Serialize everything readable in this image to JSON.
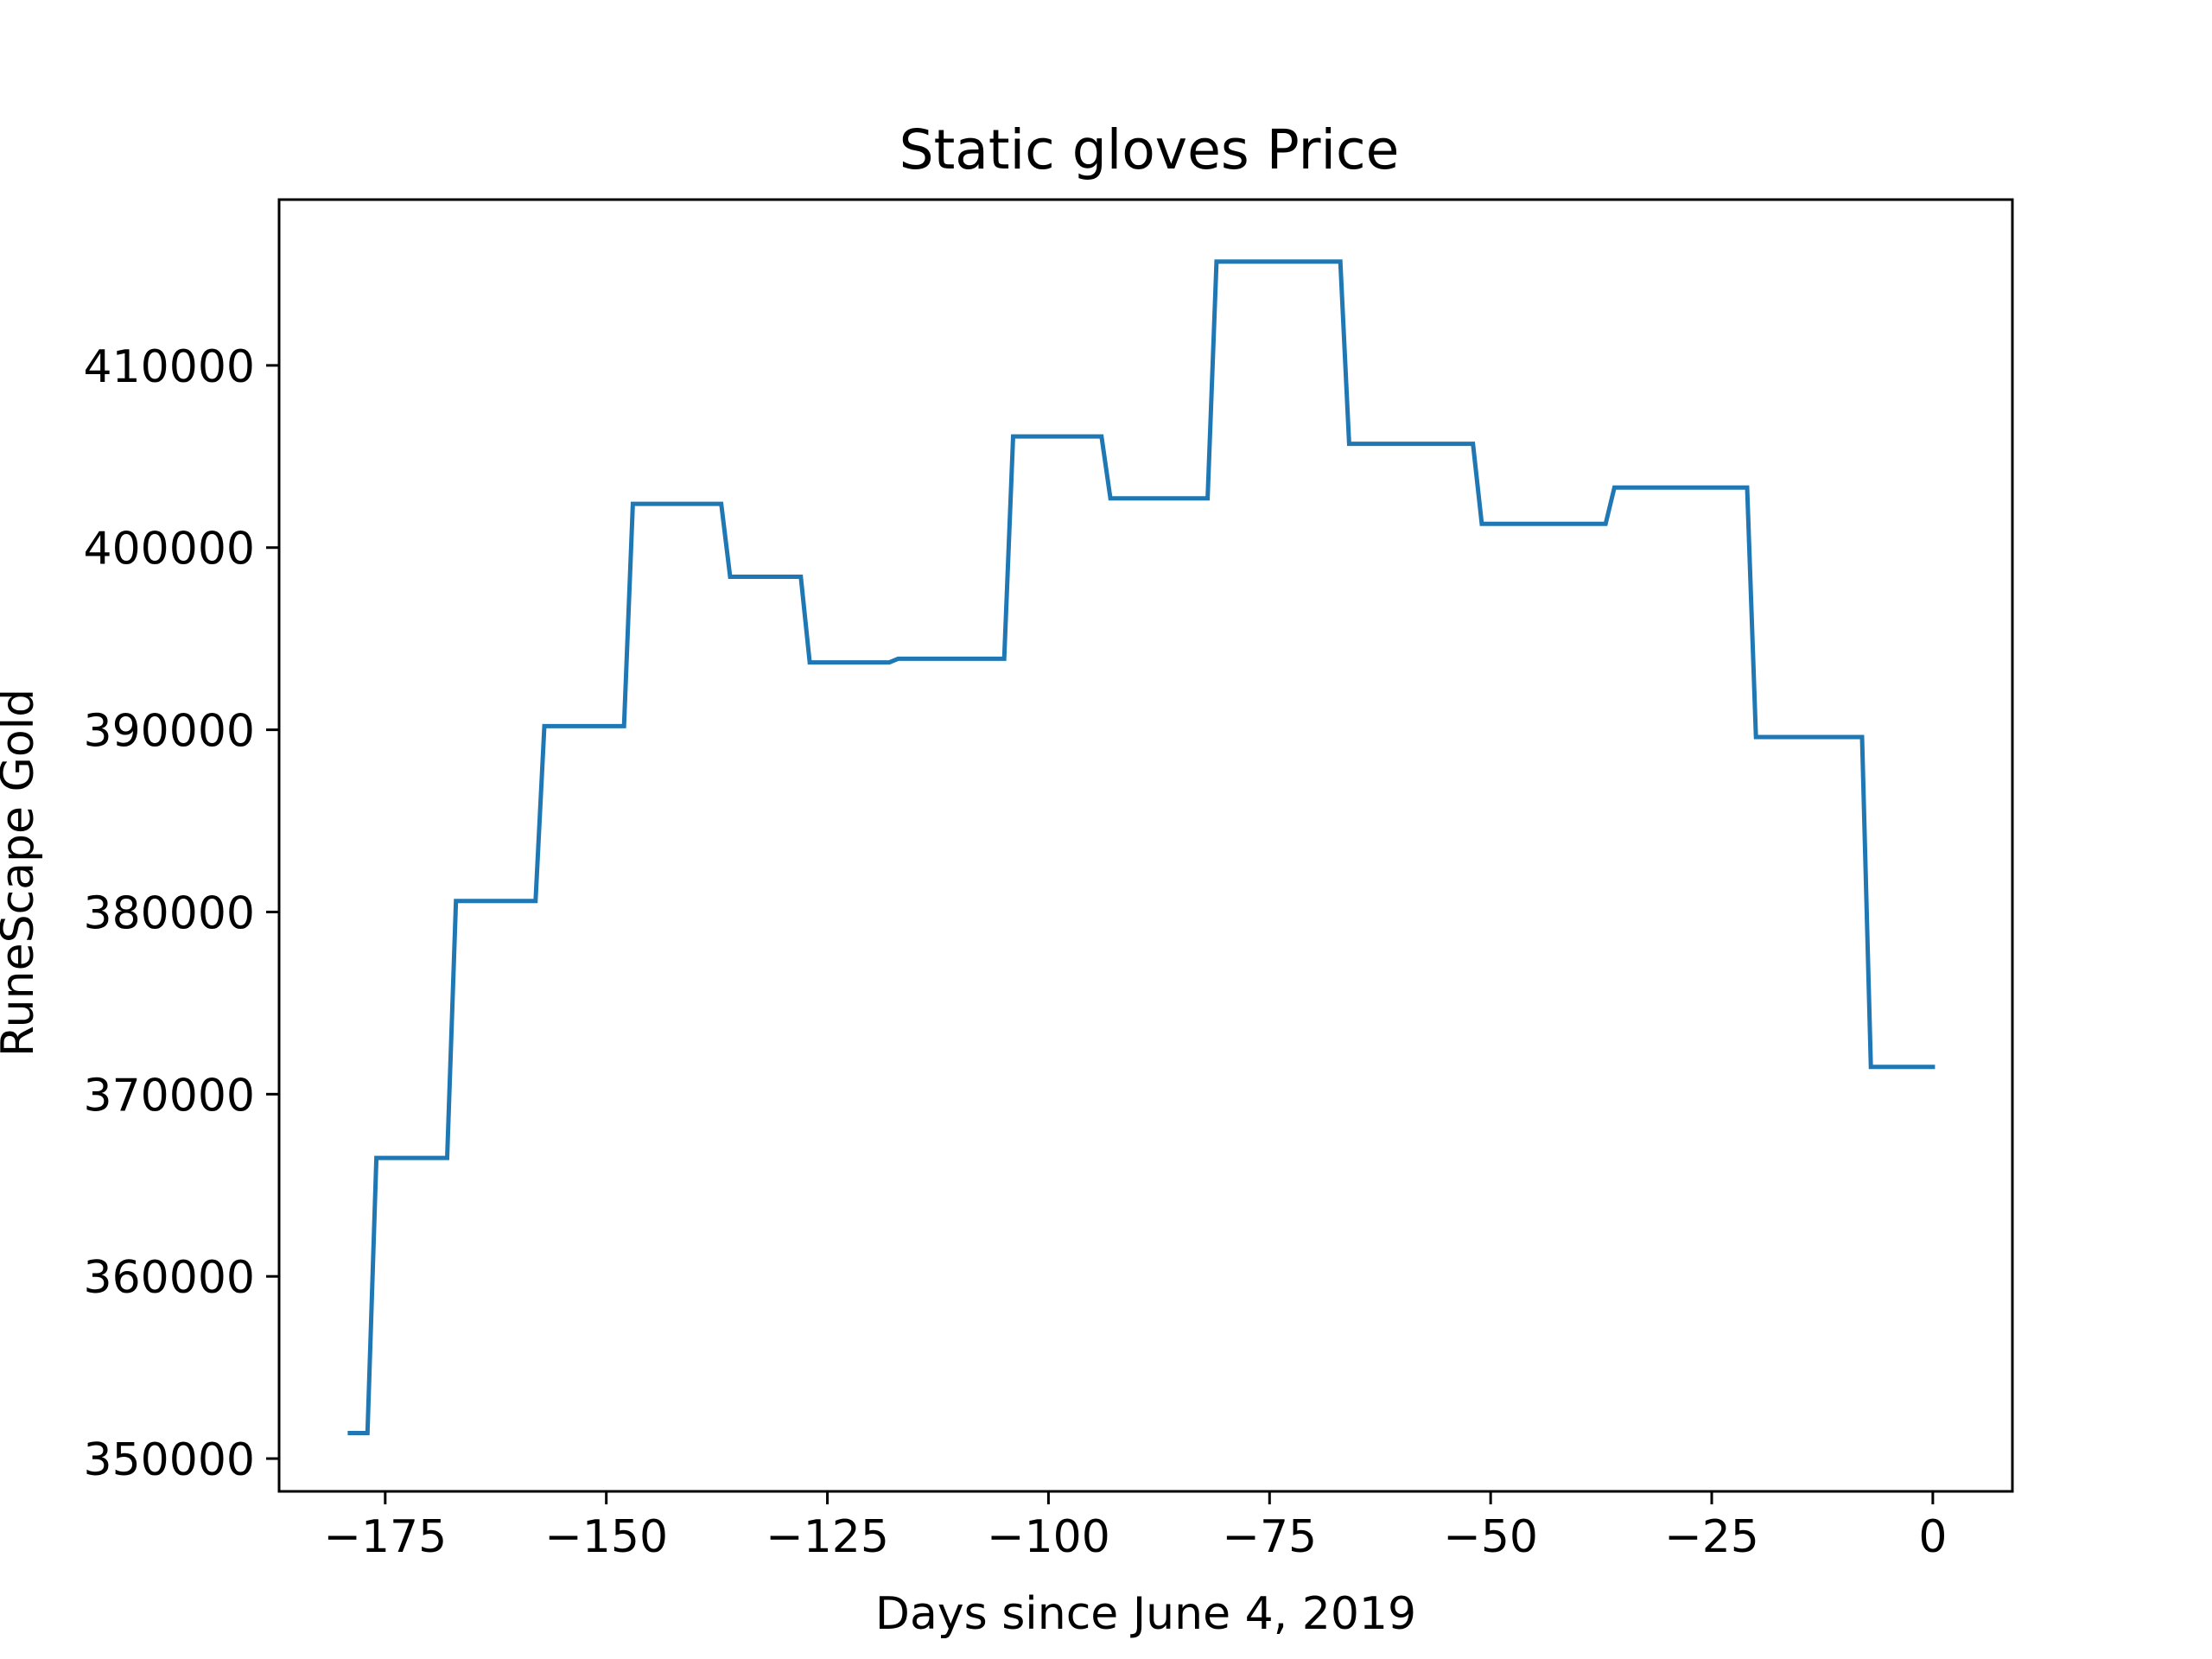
{
  "chart_data": {
    "type": "line",
    "title": "Static gloves Price",
    "xlabel": "Days since June 4, 2019",
    "ylabel": "RuneScape Gold",
    "xlim": [
      -187,
      9
    ],
    "ylim": [
      348200,
      419100
    ],
    "xticks": [
      -175,
      -150,
      -125,
      -100,
      -75,
      -50,
      -25,
      0
    ],
    "xtick_labels": [
      "−175",
      "−150",
      "−125",
      "−100",
      "−75",
      "−50",
      "−25",
      "0"
    ],
    "yticks": [
      350000,
      360000,
      370000,
      380000,
      390000,
      400000,
      410000
    ],
    "ytick_labels": [
      "350000",
      "360000",
      "370000",
      "380000",
      "390000",
      "400000",
      "410000"
    ],
    "grid": false,
    "line_color": "#1f77b4",
    "series": [
      {
        "x": [
          -179,
          -177,
          -176,
          -168,
          -167,
          -158,
          -157,
          -148,
          -147,
          -137,
          -136,
          -128,
          -127,
          -118,
          -117,
          -105,
          -104,
          -94,
          -93,
          -82,
          -81,
          -67,
          -66,
          -52,
          -51,
          -37,
          -36,
          -21,
          -20,
          -8,
          -7,
          0
        ],
        "y": [
          351400,
          351400,
          366500,
          366500,
          380600,
          380600,
          390200,
          390200,
          402400,
          402400,
          398400,
          398400,
          393700,
          393700,
          393900,
          393900,
          406100,
          406100,
          402700,
          402700,
          415700,
          415700,
          405700,
          405700,
          401300,
          401300,
          403300,
          403300,
          389600,
          389600,
          371500,
          371500
        ]
      }
    ]
  }
}
